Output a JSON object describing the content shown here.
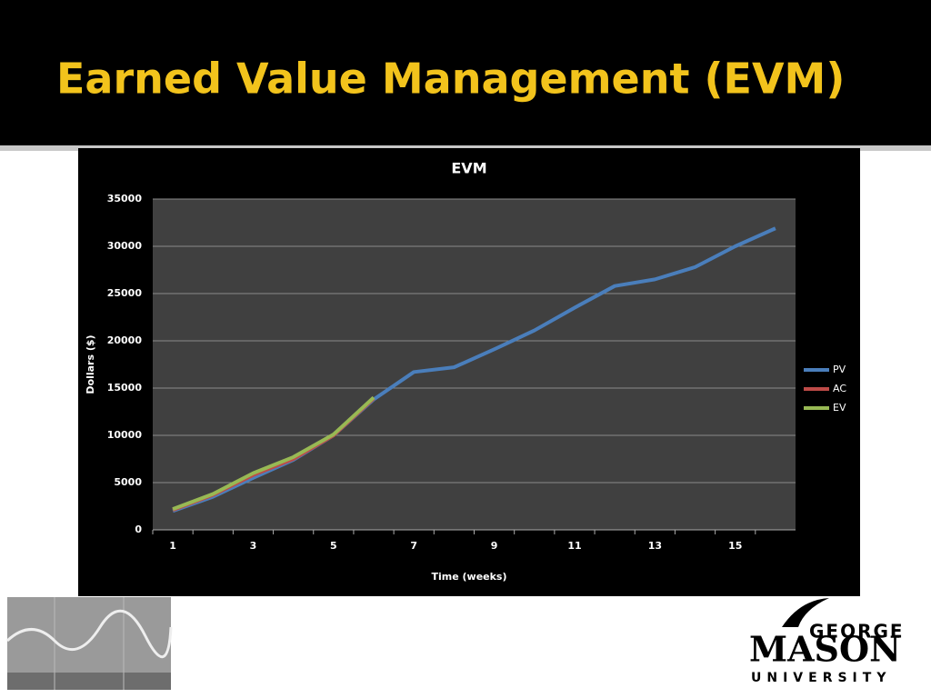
{
  "slide": {
    "title": "Earned Value Management (EVM)"
  },
  "logo": {
    "line1": "GEORGE",
    "line2": "MASON",
    "line3": "UNIVERSITY"
  },
  "chart_data": {
    "type": "line",
    "title": "EVM",
    "x_label": "Time (weeks)",
    "y_label": "Dollars ($)",
    "categories": [
      1,
      null,
      3,
      null,
      5,
      null,
      7,
      null,
      9,
      null,
      11,
      null,
      13,
      null,
      15,
      null
    ],
    "series": [
      {
        "name": "PV",
        "color": "#4a7ebb",
        "values": [
          2000,
          3500,
          5500,
          7400,
          10000,
          13800,
          16700,
          17200,
          19100,
          21100,
          23500,
          25800,
          26500,
          27800,
          30000,
          31900
        ]
      },
      {
        "name": "AC",
        "color": "#be4b48",
        "values": [
          2100,
          3700,
          5800,
          7500,
          10000,
          13900,
          null,
          null,
          null,
          null,
          null,
          null,
          null,
          null,
          null,
          null
        ]
      },
      {
        "name": "EV",
        "color": "#98b954",
        "values": [
          2200,
          3800,
          6000,
          7700,
          10100,
          14000,
          null,
          null,
          null,
          null,
          null,
          null,
          null,
          null,
          null,
          null
        ]
      }
    ],
    "ylim": [
      0,
      35000
    ],
    "yticks": [
      0,
      5000,
      10000,
      15000,
      20000,
      25000,
      30000,
      35000
    ],
    "grid": true,
    "legend": "right"
  }
}
